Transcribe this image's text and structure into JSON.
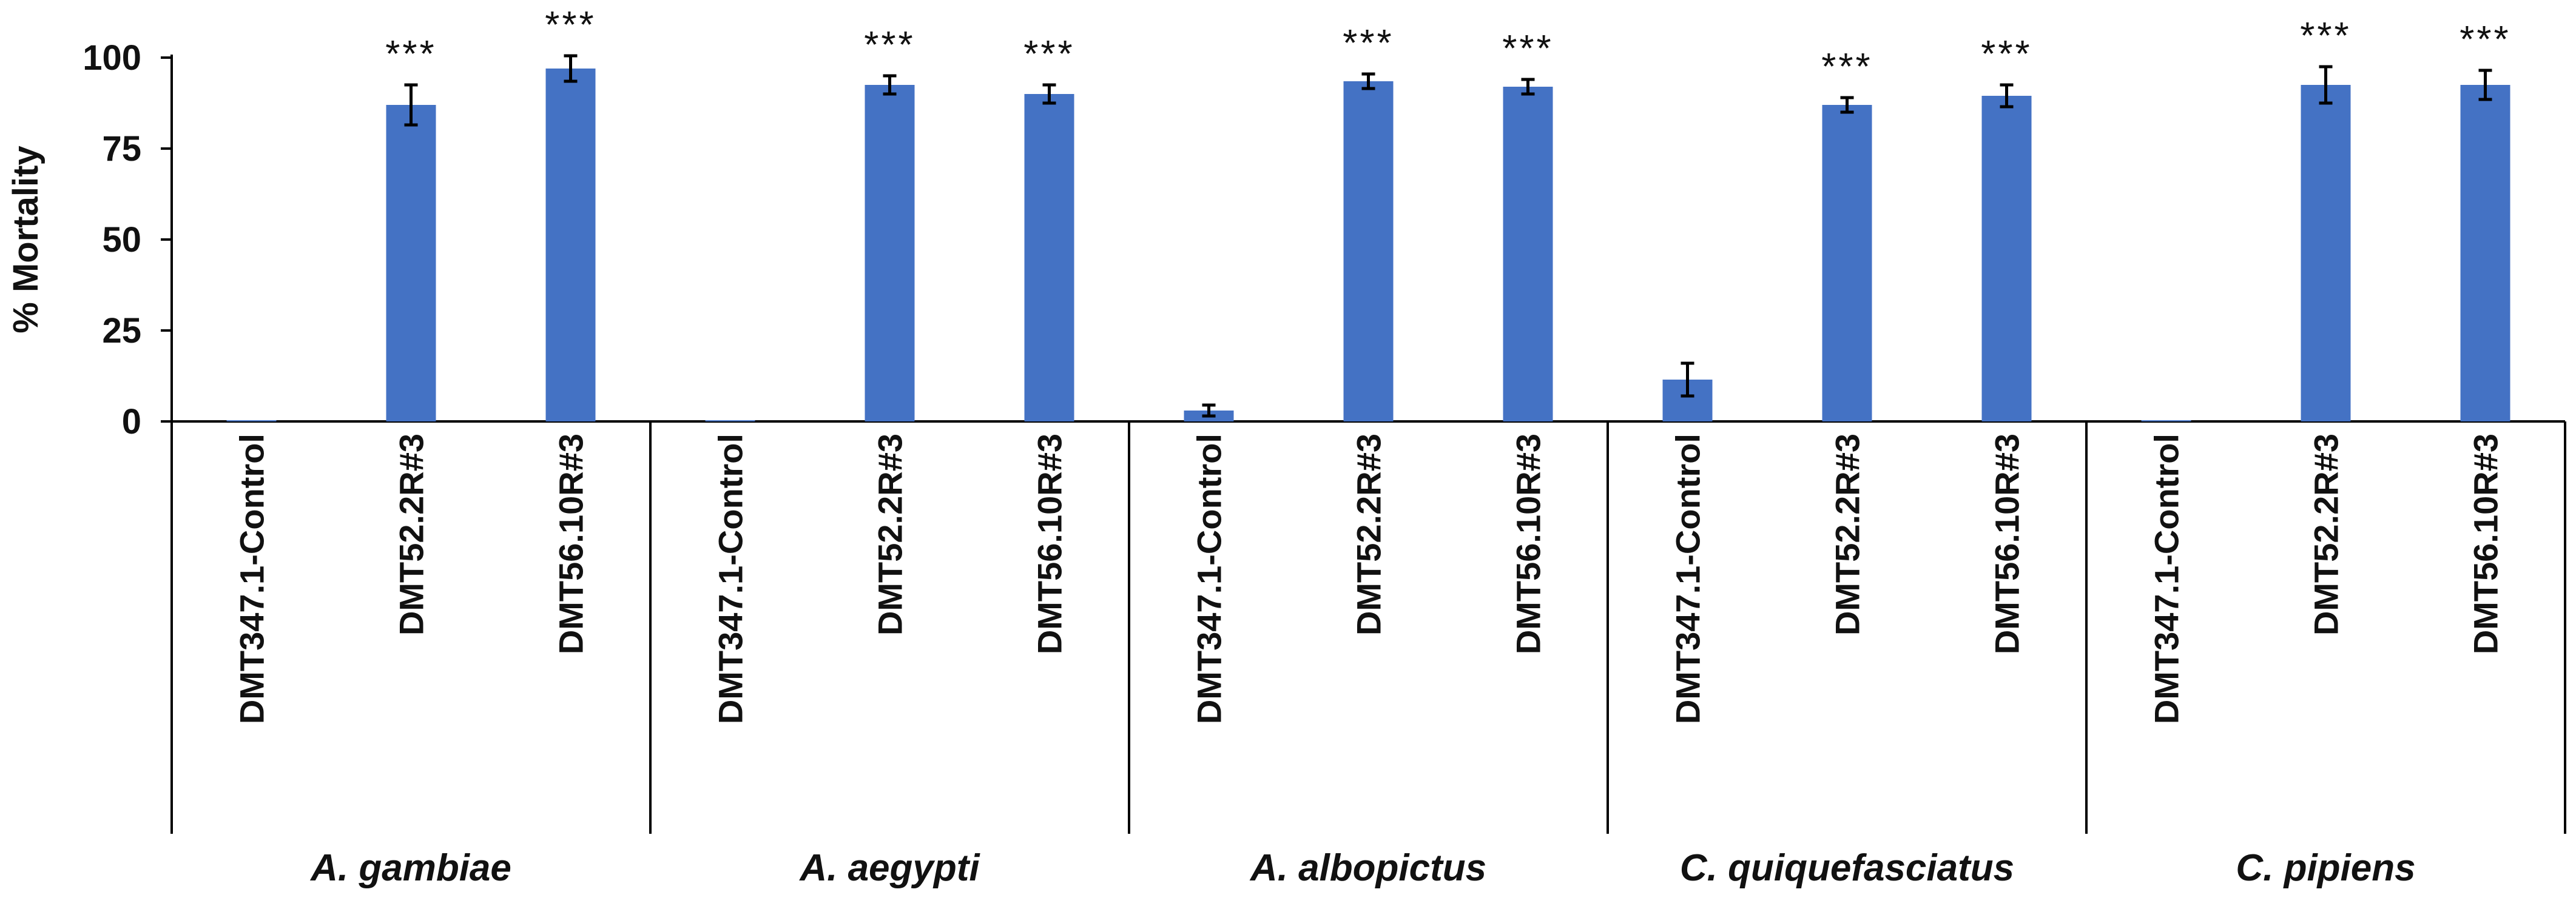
{
  "chart_data": {
    "type": "bar",
    "title": "",
    "xlabel": "",
    "ylabel": "% Mortality",
    "ylim": [
      0,
      100
    ],
    "yticks": [
      "0",
      "25",
      "50",
      "75",
      "100"
    ],
    "grid": false,
    "legend": "none",
    "bar_color": "#4472C4",
    "groups": [
      {
        "name": "A. gambiae",
        "categories": [
          "DMT347.1-Control",
          "DMT52.2R#3",
          "DMT56.10R#3"
        ],
        "values": [
          0,
          87,
          97
        ],
        "errors": [
          0,
          5.5,
          3.5
        ],
        "significance": [
          "",
          "***",
          "***"
        ]
      },
      {
        "name": "A. aegypti",
        "categories": [
          "DMT347.1-Control",
          "DMT52.2R#3",
          "DMT56.10R#3"
        ],
        "values": [
          0,
          92.5,
          90
        ],
        "errors": [
          0,
          2.5,
          2.5
        ],
        "significance": [
          "",
          "***",
          "***"
        ]
      },
      {
        "name": "A. albopictus",
        "categories": [
          "DMT347.1-Control",
          "DMT52.2R#3",
          "DMT56.10R#3"
        ],
        "values": [
          3,
          93.5,
          92
        ],
        "errors": [
          1.5,
          2,
          2
        ],
        "significance": [
          "",
          "***",
          "***"
        ]
      },
      {
        "name": "C. quiquefasciatus",
        "categories": [
          "DMT347.1-Control",
          "DMT52.2R#3",
          "DMT56.10R#3"
        ],
        "values": [
          11.5,
          87,
          89.5
        ],
        "errors": [
          4.5,
          2,
          3
        ],
        "significance": [
          "",
          "***",
          "***"
        ]
      },
      {
        "name": "C. pipiens",
        "categories": [
          "DMT347.1-Control",
          "DMT52.2R#3",
          "DMT56.10R#3"
        ],
        "values": [
          0,
          92.5,
          92.5
        ],
        "errors": [
          0,
          5,
          4
        ],
        "significance": [
          "",
          "***",
          "***"
        ]
      }
    ]
  }
}
